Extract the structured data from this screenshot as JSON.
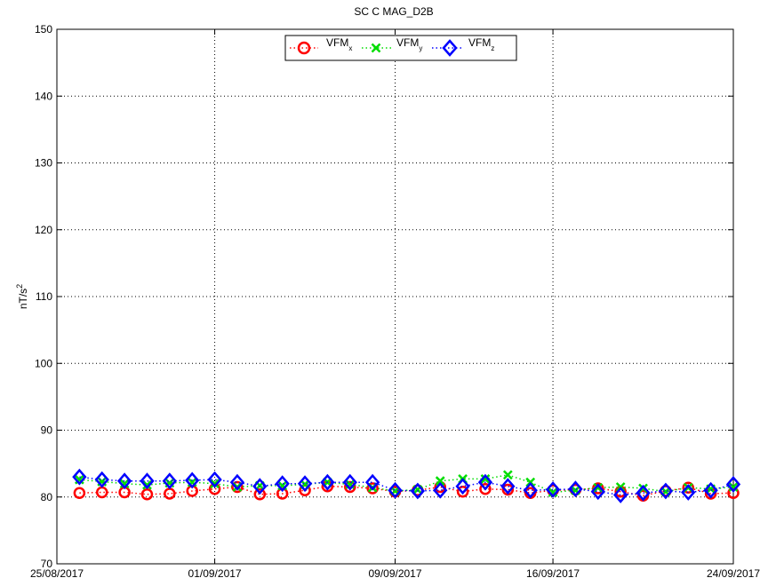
{
  "chart_data": {
    "type": "line",
    "title": "SC C MAG_D2B",
    "xlabel": "",
    "ylabel": "nT/s",
    "ylabel_superscript": "2",
    "ylim": [
      70,
      150
    ],
    "yticks": [
      70,
      80,
      90,
      100,
      110,
      120,
      130,
      140,
      150
    ],
    "xlim": [
      "2017-08-25",
      "2017-09-24"
    ],
    "xticks": [
      {
        "date": "2017-08-25",
        "label": "25/08/2017"
      },
      {
        "date": "2017-09-01",
        "label": "01/09/2017"
      },
      {
        "date": "2017-09-09",
        "label": "09/09/2017"
      },
      {
        "date": "2017-09-16",
        "label": "16/09/2017"
      },
      {
        "date": "2017-09-24",
        "label": "24/09/2017"
      }
    ],
    "grid": true,
    "legend": {
      "placement": "top-center"
    },
    "x": [
      "2017-08-26",
      "2017-08-27",
      "2017-08-28",
      "2017-08-29",
      "2017-08-30",
      "2017-08-31",
      "2017-09-01",
      "2017-09-02",
      "2017-09-03",
      "2017-09-04",
      "2017-09-05",
      "2017-09-06",
      "2017-09-07",
      "2017-09-08",
      "2017-09-09",
      "2017-09-10",
      "2017-09-11",
      "2017-09-12",
      "2017-09-13",
      "2017-09-14",
      "2017-09-15",
      "2017-09-16",
      "2017-09-17",
      "2017-09-18",
      "2017-09-19",
      "2017-09-20",
      "2017-09-21",
      "2017-09-22",
      "2017-09-23",
      "2017-09-24"
    ],
    "series": [
      {
        "name": "VFM",
        "subscript": "x",
        "color": "#ff0000",
        "marker": "circle",
        "values": [
          80.6,
          80.7,
          80.7,
          80.4,
          80.5,
          80.9,
          81.2,
          81.5,
          80.4,
          80.5,
          81.0,
          81.6,
          81.5,
          81.3,
          80.8,
          81.0,
          81.5,
          80.8,
          81.2,
          81.1,
          80.6,
          81.0,
          81.1,
          81.3,
          80.8,
          80.2,
          80.9,
          81.4,
          80.5,
          80.6
        ]
      },
      {
        "name": "VFM",
        "subscript": "y",
        "color": "#00dd00",
        "marker": "x",
        "values": [
          82.6,
          82.3,
          82.0,
          81.8,
          82.1,
          82.2,
          82.0,
          81.5,
          81.7,
          81.7,
          81.9,
          82.2,
          81.9,
          81.4,
          80.9,
          81.1,
          82.4,
          82.7,
          82.7,
          83.3,
          82.2,
          80.7,
          81.0,
          81.4,
          81.5,
          81.3,
          80.8,
          81.4,
          81.2,
          81.5
        ]
      },
      {
        "name": "VFM",
        "subscript": "z",
        "color": "#0000ff",
        "marker": "diamond",
        "values": [
          83.0,
          82.6,
          82.4,
          82.4,
          82.4,
          82.5,
          82.6,
          82.2,
          81.6,
          82.0,
          82.0,
          82.2,
          82.2,
          82.2,
          81.0,
          80.9,
          81.0,
          81.6,
          82.2,
          81.6,
          81.0,
          81.1,
          81.2,
          80.8,
          80.3,
          80.6,
          80.9,
          80.7,
          81.0,
          81.9
        ]
      }
    ]
  }
}
